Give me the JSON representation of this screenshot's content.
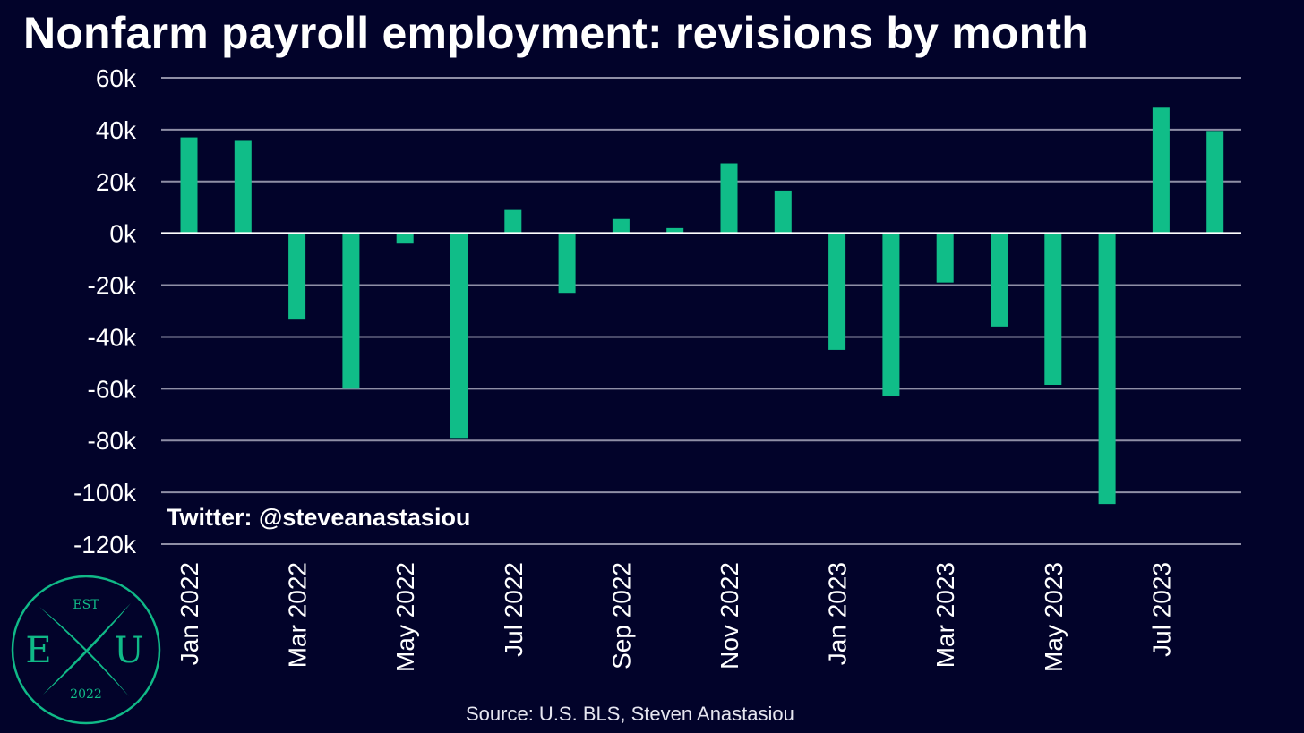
{
  "title": "Nonfarm payroll employment: revisions by month",
  "twitter_handle": "Twitter: @steveanastasiou",
  "source": "Source: U.S. BLS, Steven Anastasiou",
  "logo": {
    "top_text": "EST",
    "left_letter": "E",
    "right_letter": "U",
    "bottom_text": "2022",
    "color": "#10b987"
  },
  "colors": {
    "background": "#02032a",
    "bar": "#10bd88",
    "grid": "#8f8fa6",
    "zero_line": "#ffffff"
  },
  "chart_data": {
    "type": "bar",
    "categories": [
      "Jan 2022",
      "Feb 2022",
      "Mar 2022",
      "Apr 2022",
      "May 2022",
      "Jun 2022",
      "Jul 2022",
      "Aug 2022",
      "Sep 2022",
      "Oct 2022",
      "Nov 2022",
      "Dec 2022",
      "Jan 2023",
      "Feb 2023",
      "Mar 2023",
      "Apr 2023",
      "May 2023",
      "Jun 2023",
      "Jul 2023",
      "Aug 2023"
    ],
    "values": [
      37000,
      36000,
      -33000,
      -60000,
      -4000,
      -79000,
      9000,
      -23000,
      5500,
      2000,
      27000,
      16500,
      -45000,
      -63000,
      -19000,
      -36000,
      -58500,
      -104500,
      48500,
      39500
    ],
    "xtick_labels": [
      "Jan 2022",
      "",
      "Mar 2022",
      "",
      "May 2022",
      "",
      "Jul 2022",
      "",
      "Sep 2022",
      "",
      "Nov 2022",
      "",
      "Jan 2023",
      "",
      "Mar 2023",
      "",
      "May 2023",
      "",
      "Jul 2023",
      ""
    ],
    "yticks": [
      60000,
      40000,
      20000,
      0,
      -20000,
      -40000,
      -60000,
      -80000,
      -100000,
      -120000
    ],
    "ytick_labels": [
      "60k",
      "40k",
      "20k",
      "0k",
      "-20k",
      "-40k",
      "-60k",
      "-80k",
      "-100k",
      "-120k"
    ],
    "ylim": [
      -120000,
      60000
    ],
    "title": "Nonfarm payroll employment: revisions by month",
    "xlabel": "",
    "ylabel": "",
    "grid": true,
    "legend": false
  }
}
